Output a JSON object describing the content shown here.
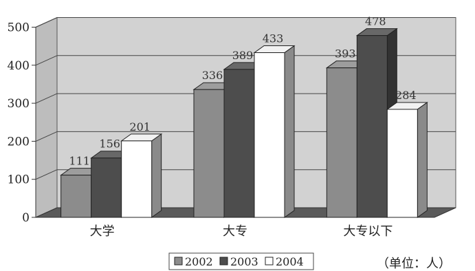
{
  "chart_data": {
    "type": "bar",
    "categories": [
      "大学",
      "大专",
      "大专以下"
    ],
    "series": [
      {
        "name": "2002",
        "values": [
          111,
          336,
          393
        ],
        "color": "#8c8c8c"
      },
      {
        "name": "2003",
        "values": [
          156,
          389,
          478
        ],
        "color": "#4d4d4d"
      },
      {
        "name": "2004",
        "values": [
          201,
          433,
          284
        ],
        "color": "#ffffff"
      }
    ],
    "yticks": [
      "0",
      "100",
      "200",
      "300",
      "400",
      "500"
    ],
    "ylim": [
      0,
      500
    ],
    "grid": true,
    "legend_position": "bottom",
    "unit_label": "（单位：人）"
  }
}
